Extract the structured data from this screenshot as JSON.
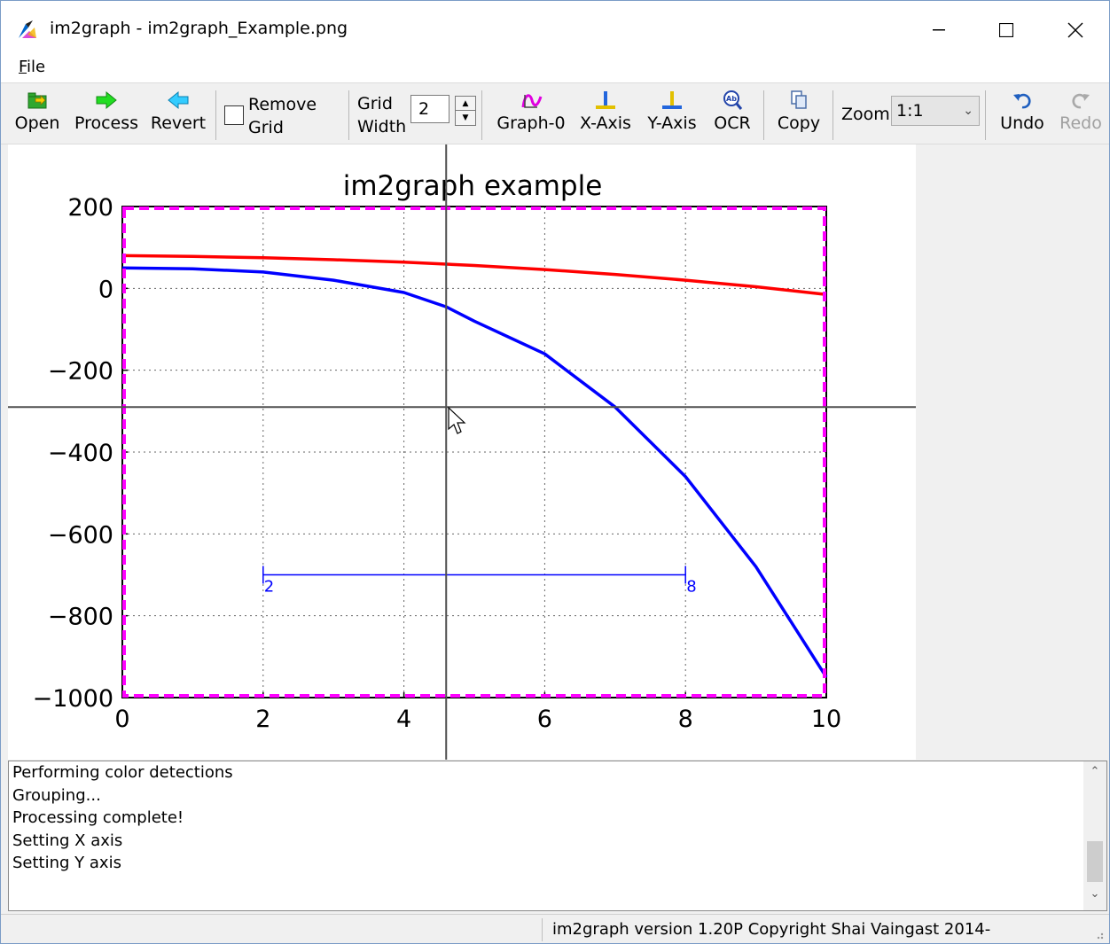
{
  "window": {
    "title": "im2graph - im2graph_Example.png",
    "controls": [
      "minimize",
      "maximize",
      "close"
    ]
  },
  "menu": {
    "items": [
      {
        "label": "File",
        "mnemonic": "F",
        "rest": "ile"
      }
    ]
  },
  "toolbar": {
    "open_label": "Open",
    "process_label": "Process",
    "revert_label": "Revert",
    "remove_grid_line1": "Remove",
    "remove_grid_line2": "Grid",
    "remove_grid_checked": false,
    "grid_width_line1": "Grid",
    "grid_width_line2": "Width",
    "grid_width_value": "2",
    "graph0_label": "Graph-0",
    "xaxis_label": "X-Axis",
    "yaxis_label": "Y-Axis",
    "ocr_label": "OCR",
    "copy_label": "Copy",
    "zoom_label": "Zoom",
    "zoom_value": "1:1",
    "undo_label": "Undo",
    "redo_label": "Redo"
  },
  "chart_data": {
    "type": "line",
    "title": "im2graph example",
    "xlabel": "",
    "ylabel": "",
    "xlim": [
      0,
      10
    ],
    "ylim": [
      -1000,
      200
    ],
    "x_ticks": [
      "0",
      "2",
      "4",
      "6",
      "8",
      "10"
    ],
    "y_ticks": [
      "200",
      "0",
      "−200",
      "−400",
      "−600",
      "−800",
      "−1000"
    ],
    "grid": true,
    "series": [
      {
        "color": "#ff0000",
        "x": [
          0,
          1,
          2,
          3,
          4,
          5,
          6,
          7,
          8,
          9,
          10
        ],
        "y": [
          80,
          78,
          75,
          70,
          64,
          56,
          46,
          34,
          20,
          4,
          -15
        ]
      },
      {
        "color": "#0000ff",
        "x": [
          0,
          1,
          2,
          3,
          4,
          4.6,
          5,
          6,
          7,
          8,
          9,
          10
        ],
        "y": [
          50,
          48,
          40,
          20,
          -10,
          -45,
          -80,
          -160,
          -290,
          -460,
          -680,
          -950
        ]
      }
    ],
    "measure_bar": {
      "x_start": 2,
      "x_end": 8,
      "y": -700,
      "start_label": "2",
      "end_label": "8"
    },
    "crosshair": {
      "x": 4.6,
      "y": -290
    },
    "colors": {
      "selection_box": "#ff00ff",
      "crosshair": "#505050",
      "measure": "#0000ff"
    }
  },
  "log": {
    "lines": [
      "Performing color detections",
      "Grouping...",
      "Processing complete!",
      "Setting X axis",
      "Setting Y axis"
    ]
  },
  "status": {
    "text": "im2graph version 1.20P Copyright Shai Vaingast 2014-"
  }
}
